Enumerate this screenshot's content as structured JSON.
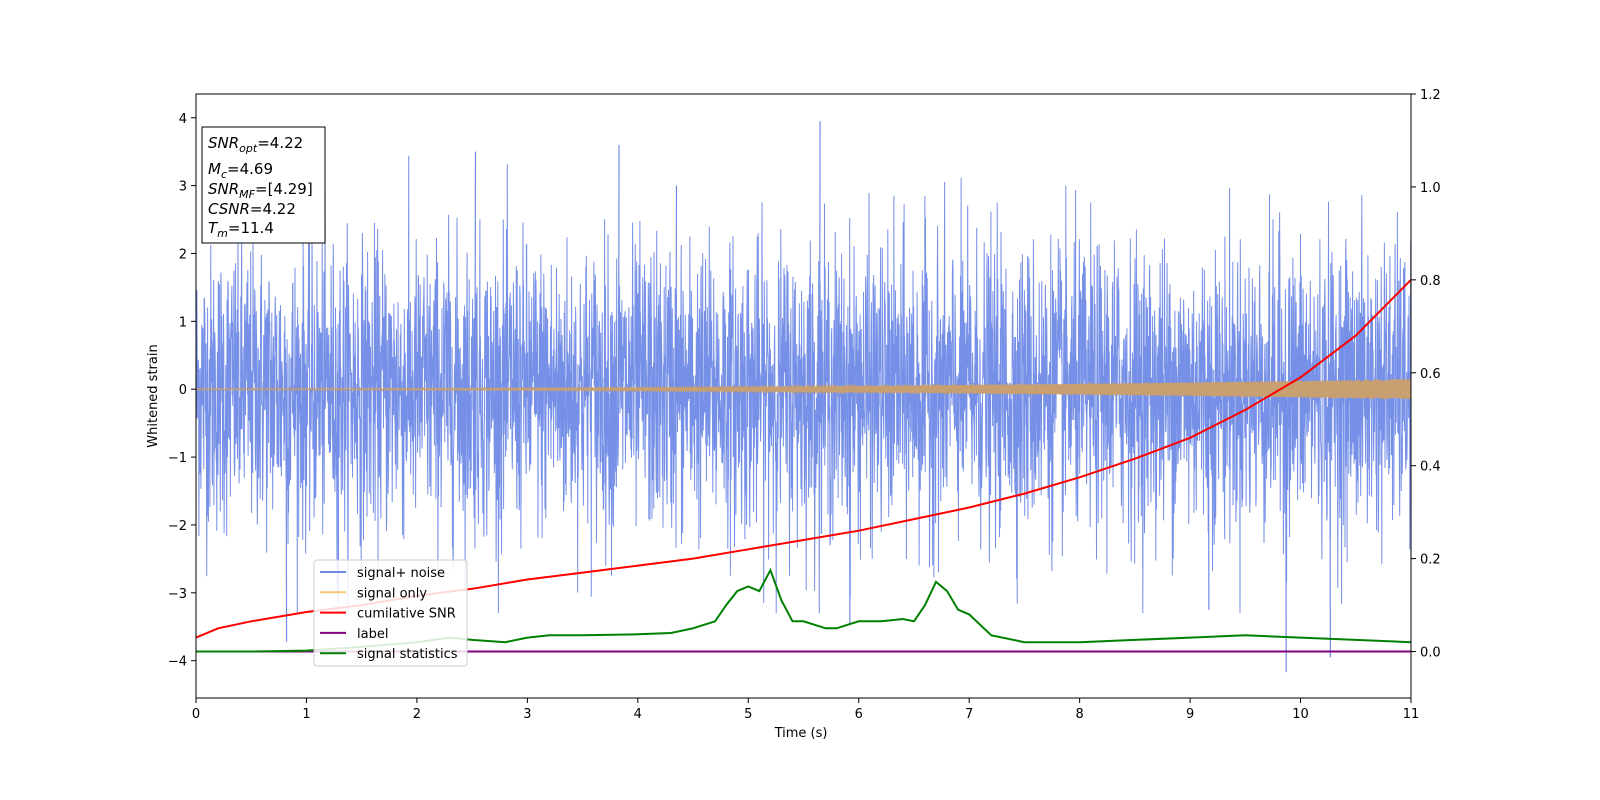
{
  "chart_data": {
    "type": "line",
    "xlabel": "Time (s)",
    "ylabel": "Whitened strain",
    "xlim": [
      0,
      11
    ],
    "ylim_left": [
      -4.55,
      4.35
    ],
    "ylim_right": [
      -0.1,
      1.2
    ],
    "x_ticks": [
      0,
      1,
      2,
      3,
      4,
      5,
      6,
      7,
      8,
      9,
      10,
      11
    ],
    "y_ticks_left": [
      -4,
      -3,
      -2,
      -1,
      0,
      1,
      2,
      3,
      4
    ],
    "y_ticks_right": [
      0.0,
      0.2,
      0.4,
      0.6,
      0.8,
      1.0,
      1.2
    ],
    "y_tick_labels_right": [
      "0.0",
      "0.2",
      "0.4",
      "0.6",
      "0.8",
      "1.0",
      "1.2"
    ],
    "grid": false,
    "legend_position": "lower-left",
    "annotation": {
      "lines": [
        {
          "base": "SNR",
          "sub": "opt",
          "rest": "=4.22"
        },
        {
          "base": "M",
          "sub": "c",
          "rest": "=4.69"
        },
        {
          "base": "SNR",
          "sub": "MF",
          "rest": "=[4.29]"
        },
        {
          "base": "CSNR",
          "sub": "",
          "rest": "=4.22"
        },
        {
          "base": "T",
          "sub": "m",
          "rest": "=11.4"
        }
      ]
    },
    "series": [
      {
        "name": "signal+ noise",
        "axis": "left",
        "color": "#6f8ae6",
        "description": "whitened noise, approximately N(0,1), spikes to about 4 and -4.2",
        "amplitude_std": 1.0,
        "peak_max": 3.95,
        "peak_min": -4.17
      },
      {
        "name": "signal only",
        "axis": "left",
        "color": "#f5c87a",
        "amplitude_start": 0.01,
        "amplitude_end": 0.15
      },
      {
        "name": "cumilative SNR",
        "axis": "right",
        "color": "#ff0000",
        "x": [
          0,
          0.2,
          0.5,
          1,
          1.5,
          2,
          2.5,
          3,
          3.5,
          4,
          4.5,
          5,
          5.5,
          6,
          6.5,
          7,
          7.5,
          8,
          8.5,
          9,
          9.5,
          10,
          10.5,
          11
        ],
        "y": [
          0.03,
          0.05,
          0.065,
          0.085,
          0.1,
          0.12,
          0.135,
          0.155,
          0.17,
          0.185,
          0.2,
          0.22,
          0.24,
          0.26,
          0.285,
          0.31,
          0.34,
          0.375,
          0.415,
          0.46,
          0.52,
          0.59,
          0.68,
          0.8
        ]
      },
      {
        "name": "label",
        "axis": "right",
        "color": "#800080",
        "x": [
          0,
          11
        ],
        "y": [
          0,
          0
        ]
      },
      {
        "name": "signal statistics",
        "axis": "right",
        "color": "#008000",
        "x": [
          0,
          0.5,
          1,
          1.5,
          2,
          2.3,
          2.5,
          2.8,
          3,
          3.2,
          3.5,
          4,
          4.3,
          4.5,
          4.7,
          4.8,
          4.9,
          5.0,
          5.1,
          5.2,
          5.3,
          5.4,
          5.5,
          5.7,
          5.8,
          6.0,
          6.2,
          6.4,
          6.5,
          6.6,
          6.7,
          6.8,
          6.9,
          7.0,
          7.2,
          7.5,
          8,
          8.5,
          9,
          9.5,
          10,
          10.5,
          11
        ],
        "y": [
          0.0,
          0.0,
          0.002,
          0.01,
          0.02,
          0.03,
          0.025,
          0.02,
          0.03,
          0.035,
          0.035,
          0.037,
          0.04,
          0.05,
          0.065,
          0.1,
          0.13,
          0.14,
          0.13,
          0.175,
          0.11,
          0.065,
          0.065,
          0.05,
          0.05,
          0.065,
          0.065,
          0.07,
          0.065,
          0.1,
          0.15,
          0.13,
          0.09,
          0.08,
          0.035,
          0.02,
          0.02,
          0.025,
          0.03,
          0.035,
          0.03,
          0.025,
          0.02
        ]
      }
    ]
  }
}
